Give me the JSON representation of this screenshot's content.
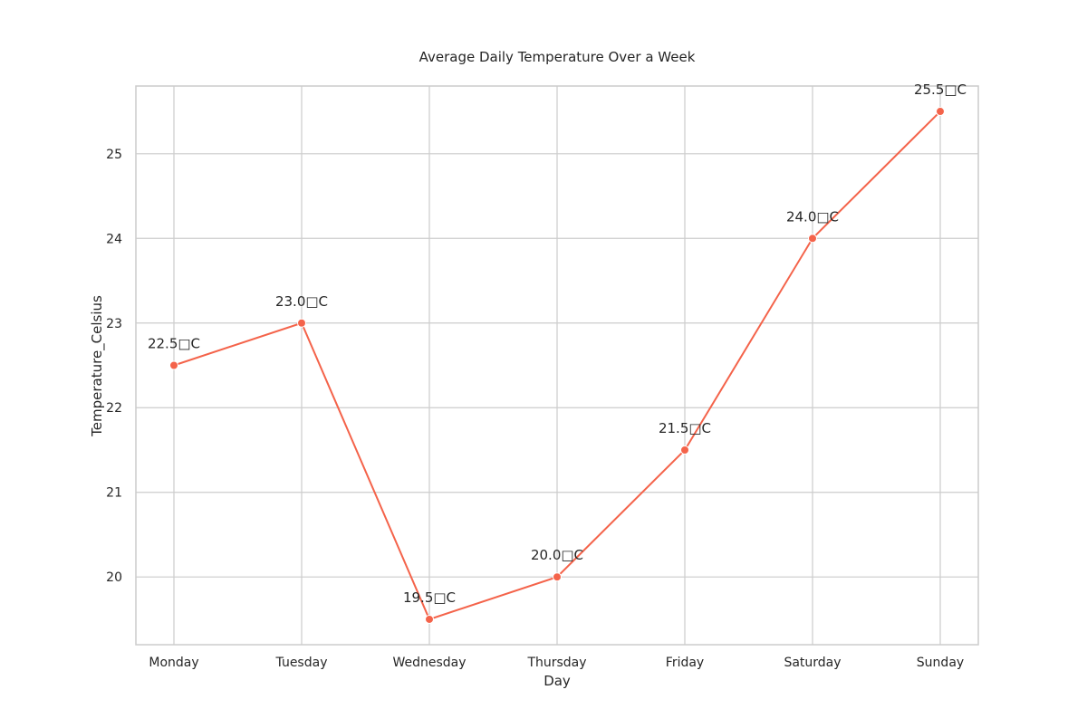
{
  "chart_data": {
    "type": "line",
    "title": "Average Daily Temperature Over a Week",
    "xlabel": "Day",
    "ylabel": "Temperature_Celsius",
    "categories": [
      "Monday",
      "Tuesday",
      "Wednesday",
      "Thursday",
      "Friday",
      "Saturday",
      "Sunday"
    ],
    "series": [
      {
        "values": [
          22.5,
          23.0,
          19.5,
          20.0,
          21.5,
          24.0,
          25.5
        ],
        "color": "#f4634a",
        "data_labels": [
          "22.5□C",
          "23.0□C",
          "19.5□C",
          "20.0□C",
          "21.5□C",
          "24.0□C",
          "25.5□C"
        ]
      }
    ],
    "ylim": [
      19.2,
      25.8
    ],
    "yticks": [
      20,
      21,
      22,
      23,
      24,
      25
    ],
    "grid": true,
    "legend": "none"
  }
}
